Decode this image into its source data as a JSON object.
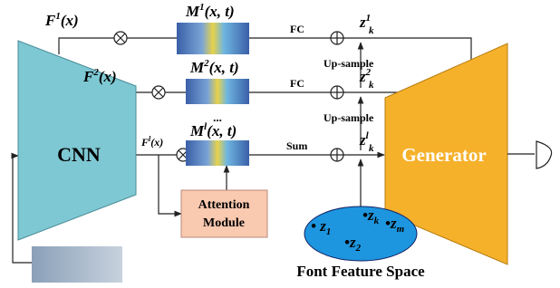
{
  "features": [
    {
      "base": "F",
      "sup": "1",
      "arg": "(x)"
    },
    {
      "base": "F",
      "sup": "2",
      "arg": "(x)"
    },
    {
      "base": "F",
      "sup": "l",
      "arg": "(x)"
    }
  ],
  "maps": [
    {
      "base": "M",
      "sup": "1",
      "arg": "(x, t)"
    },
    {
      "base": "M",
      "sup": "2",
      "arg": "(x, t)"
    },
    {
      "base": "M",
      "sup": "l",
      "arg": "(x, t)"
    }
  ],
  "ellipsis": "...",
  "ops": [
    "FC",
    "FC",
    "Sum"
  ],
  "upsample": [
    "Up-sample",
    "Up-sample"
  ],
  "codes": [
    {
      "base": "z",
      "sub": "k",
      "sup": "1"
    },
    {
      "base": "z",
      "sub": "k",
      "sup": "2"
    },
    {
      "base": "z",
      "sub": "k",
      "sup": "l"
    }
  ],
  "cnn": "CNN",
  "attention": [
    "Attention",
    "Module"
  ],
  "generator": "Generator",
  "space": {
    "title": "Font Feature Space",
    "points": [
      {
        "base": "z",
        "sub": "k"
      },
      {
        "base": "z",
        "sub": "1"
      },
      {
        "base": "z",
        "sub": "m"
      },
      {
        "base": "z",
        "sub": "2"
      }
    ]
  }
}
